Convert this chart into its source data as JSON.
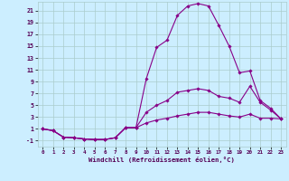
{
  "xlabel": "Windchill (Refroidissement éolien,°C)",
  "background_color": "#cceeff",
  "grid_color": "#aacccc",
  "line_color": "#880088",
  "xlim": [
    -0.5,
    23.5
  ],
  "ylim": [
    -2,
    22.5
  ],
  "xticks": [
    0,
    1,
    2,
    3,
    4,
    5,
    6,
    7,
    8,
    9,
    10,
    11,
    12,
    13,
    14,
    15,
    16,
    17,
    18,
    19,
    20,
    21,
    22,
    23
  ],
  "yticks": [
    -1,
    1,
    3,
    5,
    7,
    9,
    11,
    13,
    15,
    17,
    19,
    21
  ],
  "series": [
    [
      1.0,
      0.7,
      -0.4,
      -0.5,
      -0.7,
      -0.8,
      -0.8,
      -0.5,
      1.2,
      1.2,
      9.5,
      14.8,
      16.0,
      20.2,
      21.8,
      22.2,
      21.8,
      18.5,
      15.0,
      10.5,
      10.8,
      5.8,
      4.5,
      2.7
    ],
    [
      1.0,
      0.7,
      -0.4,
      -0.5,
      -0.7,
      -0.8,
      -0.8,
      -0.5,
      1.2,
      1.2,
      3.8,
      5.0,
      5.8,
      7.2,
      7.5,
      7.8,
      7.5,
      6.5,
      6.2,
      5.5,
      8.2,
      5.5,
      4.2,
      2.7
    ],
    [
      1.0,
      0.7,
      -0.4,
      -0.5,
      -0.7,
      -0.8,
      -0.8,
      -0.5,
      1.2,
      1.2,
      2.0,
      2.5,
      2.8,
      3.2,
      3.5,
      3.8,
      3.8,
      3.5,
      3.2,
      3.0,
      3.5,
      2.8,
      2.8,
      2.7
    ]
  ]
}
